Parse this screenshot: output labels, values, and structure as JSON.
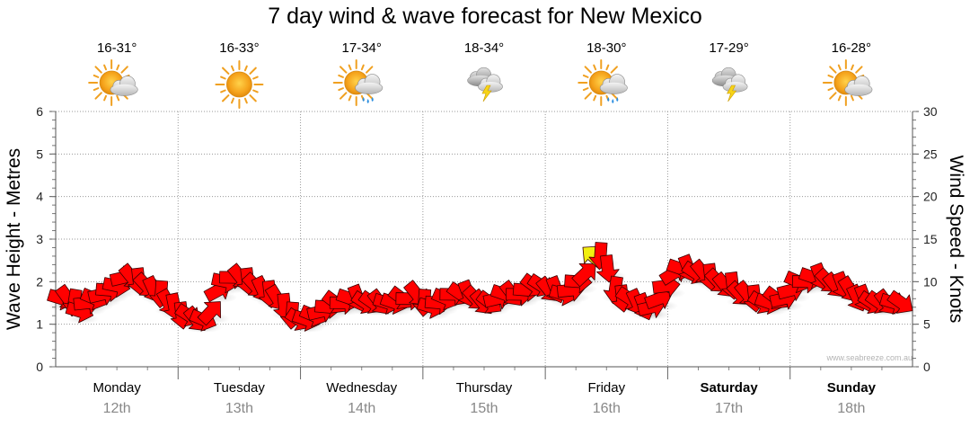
{
  "chart_data": {
    "type": "line",
    "title": "7 day wind & wave forecast for New Mexico",
    "ylabel_left": "Wave Height - Metres",
    "ylabel_right": "Wind Speed - Knots",
    "ylim_left": [
      0,
      6
    ],
    "ylim_right": [
      0,
      30
    ],
    "yticks_left": [
      "0",
      "1",
      "2",
      "3",
      "4",
      "5",
      "6"
    ],
    "yticks_right": [
      "0",
      "5",
      "10",
      "15",
      "20",
      "25",
      "30"
    ],
    "credit": "www.seabreeze.com.au",
    "days": [
      {
        "name": "Monday",
        "date": "12th",
        "bold": false,
        "temp": "16-31°",
        "icon": "sun-cloud"
      },
      {
        "name": "Tuesday",
        "date": "13th",
        "bold": false,
        "temp": "16-33°",
        "icon": "sun"
      },
      {
        "name": "Wednesday",
        "date": "14th",
        "bold": false,
        "temp": "17-34°",
        "icon": "sun-cloud-rain"
      },
      {
        "name": "Thursday",
        "date": "15th",
        "bold": false,
        "temp": "18-34°",
        "icon": "cloud-lightning"
      },
      {
        "name": "Friday",
        "date": "16th",
        "bold": false,
        "temp": "18-30°",
        "icon": "sun-cloud-rain"
      },
      {
        "name": "Saturday",
        "date": "17th",
        "bold": true,
        "temp": "17-29°",
        "icon": "cloud-lightning"
      },
      {
        "name": "Sunday",
        "date": "18th",
        "bold": true,
        "temp": "16-28°",
        "icon": "sun-cloud"
      }
    ],
    "wind_series": {
      "name": "Wind Speed (knots)",
      "units": "knots",
      "x_days": [
        0.05,
        0.1,
        0.15,
        0.2,
        0.26,
        0.32,
        0.38,
        0.44,
        0.5,
        0.56,
        0.62,
        0.68,
        0.74,
        0.8,
        0.86,
        0.92,
        0.97,
        1.03,
        1.09,
        1.15,
        1.21,
        1.27,
        1.33,
        1.39,
        1.45,
        1.51,
        1.57,
        1.63,
        1.69,
        1.75,
        1.81,
        1.87,
        1.93,
        1.99,
        2.05,
        2.11,
        2.17,
        2.23,
        2.29,
        2.35,
        2.41,
        2.47,
        2.53,
        2.59,
        2.65,
        2.71,
        2.77,
        2.83,
        2.89,
        2.95,
        3.01,
        3.07,
        3.13,
        3.19,
        3.25,
        3.31,
        3.37,
        3.43,
        3.49,
        3.55,
        3.61,
        3.67,
        3.73,
        3.79,
        3.85,
        3.91,
        3.97,
        4.03,
        4.09,
        4.15,
        4.21,
        4.27,
        4.33,
        4.39,
        4.45,
        4.51,
        4.57,
        4.63,
        4.69,
        4.75,
        4.81,
        4.87,
        4.93,
        4.99,
        5.05,
        5.11,
        5.17,
        5.23,
        5.29,
        5.35,
        5.41,
        5.47,
        5.53,
        5.59,
        5.65,
        5.71,
        5.77,
        5.83,
        5.89,
        5.95,
        6.01,
        6.07,
        6.13,
        6.19,
        6.25,
        6.31,
        6.37,
        6.43,
        6.49,
        6.55,
        6.61,
        6.67,
        6.73,
        6.79,
        6.85,
        6.91
      ],
      "values": [
        8,
        8,
        7.5,
        6.5,
        7.5,
        8,
        8.5,
        9,
        9.5,
        10.5,
        10.5,
        10,
        9.5,
        9,
        8.5,
        7.5,
        7,
        6,
        6,
        5.5,
        5.5,
        6.5,
        9,
        10,
        10.5,
        10.5,
        10,
        9.5,
        9,
        8.5,
        8,
        7,
        6,
        5.5,
        5.5,
        6,
        6.5,
        7,
        7.5,
        7.5,
        8,
        8,
        7.5,
        7.5,
        7.5,
        7.5,
        7.5,
        8,
        8,
        8.5,
        7.5,
        7,
        7.5,
        8,
        8.5,
        8.5,
        8.5,
        8,
        7.5,
        7.5,
        8,
        8.5,
        8.5,
        8.5,
        9,
        9.5,
        9.5,
        9,
        9,
        8.5,
        9,
        10,
        11,
        13,
        13,
        11.5,
        9,
        8,
        8,
        7.5,
        7,
        7,
        8,
        9.5,
        11,
        11.5,
        11.5,
        11,
        11,
        10.5,
        10,
        9.5,
        9.5,
        8.5,
        8.5,
        8,
        7.5,
        7.5,
        8,
        8,
        9,
        10,
        10,
        10.5,
        10.5,
        10,
        9.5,
        9.5,
        9,
        8,
        8,
        7.5,
        7.5,
        7.5,
        7.5,
        7.5
      ],
      "highlight_index": 73,
      "highlight_color": "#f2ef10",
      "arrow_color": "#ff0000"
    },
    "wave_height_m": null
  }
}
